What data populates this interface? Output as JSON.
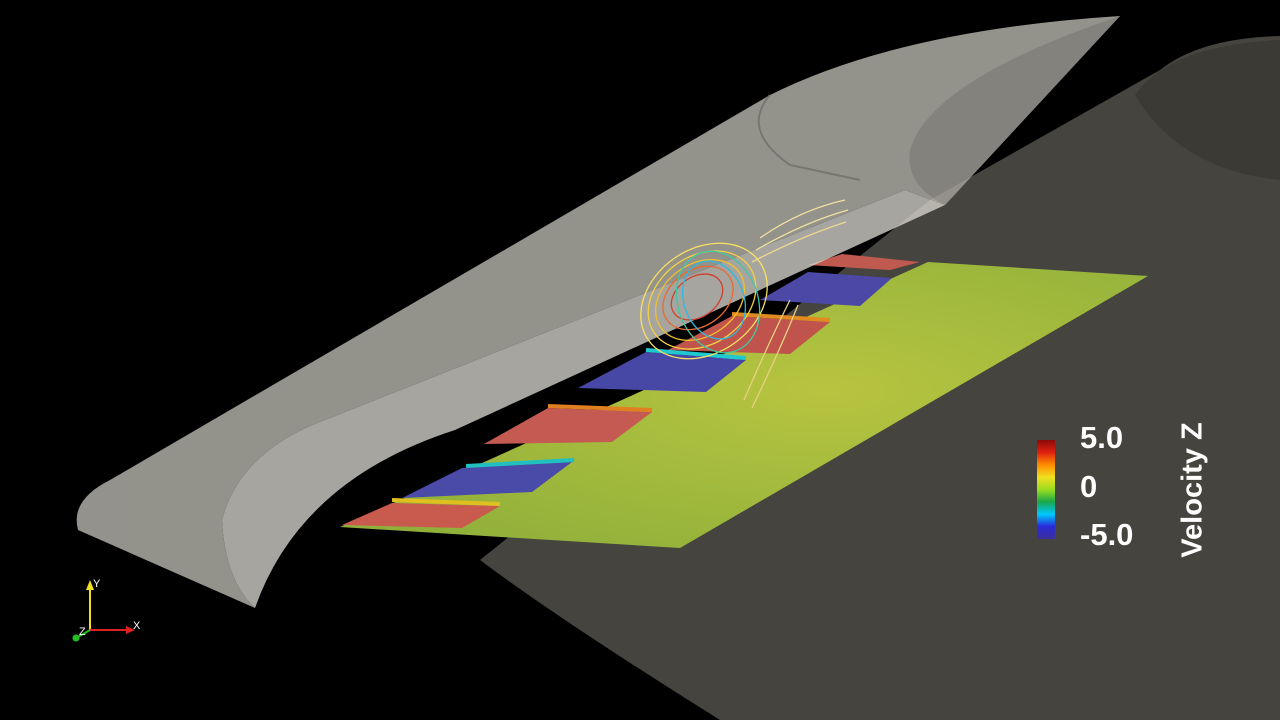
{
  "scalar_bar": {
    "title": "Velocity Z",
    "max_label": "5.0",
    "mid_label": "0",
    "min_label": "-5.0",
    "range": [
      -5.0,
      5.0
    ],
    "colormap": [
      "#3b2f9a",
      "#2a2ad8",
      "#00c8ff",
      "#1aa84a",
      "#9bdc1e",
      "#f0e020",
      "#ff8c00",
      "#e02010",
      "#8a0a0a"
    ]
  },
  "orientation_axes": {
    "x_label": "X",
    "y_label": "Y",
    "z_label": "Z",
    "x_color": "#e02020",
    "y_color": "#f0e020",
    "z_color": "#20c020"
  },
  "colors": {
    "background": "#000000",
    "body_surface": "#d9d7cf",
    "ground": "#4a4842",
    "slice_base": "#9bb43a"
  }
}
